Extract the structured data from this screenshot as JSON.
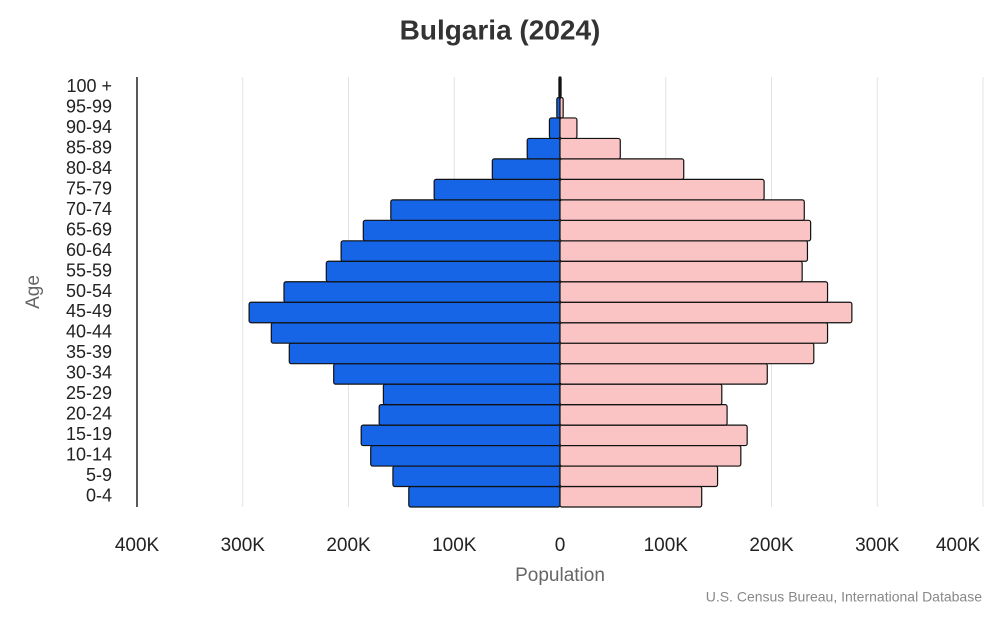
{
  "chart_data": {
    "type": "pyramid",
    "title": "Bulgaria (2024)",
    "x_label": "Population",
    "y_label": "Age",
    "source": "U.S. Census Bureau, International Database",
    "categories": [
      "0-4",
      "5-9",
      "10-14",
      "15-19",
      "20-24",
      "25-29",
      "30-34",
      "35-39",
      "40-44",
      "45-49",
      "50-54",
      "55-59",
      "60-64",
      "65-69",
      "70-74",
      "75-79",
      "80-84",
      "85-89",
      "90-94",
      "95-99",
      "100 +"
    ],
    "series": [
      {
        "color": "#1565e6",
        "values": [
          -143000,
          -158000,
          -179000,
          -188000,
          -171000,
          -167000,
          -214000,
          -256000,
          -273000,
          -294000,
          -261000,
          -221000,
          -207000,
          -186000,
          -160000,
          -119000,
          -64000,
          -31000,
          -10000,
          -3000,
          -1000
        ]
      },
      {
        "color": "#fbc4c4",
        "values": [
          134000,
          149000,
          171000,
          177000,
          158000,
          153000,
          196000,
          240000,
          253000,
          276000,
          253000,
          229000,
          234000,
          237000,
          231000,
          193000,
          117000,
          57000,
          16000,
          3000,
          1000
        ]
      }
    ],
    "xlim": [
      -400000,
      400000
    ],
    "xticks": [
      {
        "value": -400000,
        "label": "400K"
      },
      {
        "value": -300000,
        "label": "300K"
      },
      {
        "value": -200000,
        "label": "200K"
      },
      {
        "value": -100000,
        "label": "100K"
      },
      0,
      {
        "value": 100000,
        "label": "100K"
      },
      {
        "value": 200000,
        "label": "200K"
      },
      {
        "value": 300000,
        "label": "300K"
      },
      {
        "value": 400000,
        "label": "400K"
      }
    ],
    "grid": true
  }
}
